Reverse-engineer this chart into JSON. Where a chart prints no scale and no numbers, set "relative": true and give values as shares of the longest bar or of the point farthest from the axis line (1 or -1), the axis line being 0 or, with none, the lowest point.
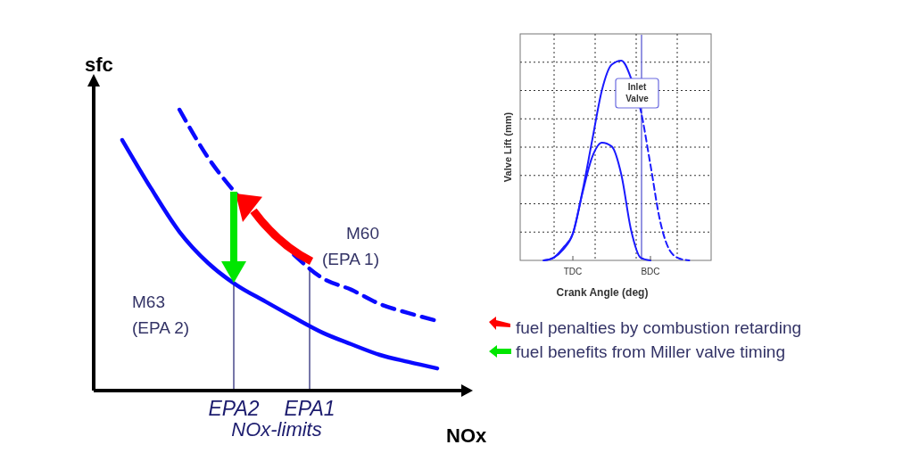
{
  "chart_data": [
    {
      "type": "line",
      "xlabel": "NOx",
      "ylabel": "sfc",
      "relative": true,
      "line_style": "solid",
      "categories": [
        null,
        null,
        null,
        null,
        null,
        null,
        null,
        null,
        null,
        null,
        null,
        null
      ],
      "series": [
        {
          "color": "#0a0aff",
          "values": [
            0.892,
            0.721,
            0.565,
            0.454,
            0.375,
            0.317,
            0.26,
            0.206,
            0.165,
            0.127,
            0.102,
            0.079
          ]
        },
        {
          "color": "#0a0aff",
          "line_style": "dashed",
          "values": [
            null,
            null,
            1,
            0.829,
            0.698,
            null,
            0.483,
            0.4,
            0.359,
            0.308,
            0.276,
            0.248
          ]
        }
      ],
      "annotations": [
        "EPA2",
        "EPA1",
        "NOx-limits",
        "M60\n(EPA 1)",
        "M63\n(EPA 2)",
        "fuel penalties by combustion retarding",
        "fuel benefits from Miller valve timing"
      ]
    },
    {
      "type": "line",
      "xlabel": "Crank Angle (deg)",
      "ylabel": "Valve Lift (mm)",
      "relative": true,
      "grid": true,
      "categories": [
        null,
        null,
        null,
        "TDC",
        null,
        null,
        null,
        null,
        null,
        null,
        null,
        "BDC",
        null,
        null,
        null,
        null
      ],
      "series": [
        {
          "color": "#1a1aff",
          "line_style": "solid",
          "values": [
            0,
            0.013,
            0.054,
            0.134,
            0.348,
            0.603,
            0.853,
            0.98,
            1,
            0.911,
            null,
            null,
            null,
            null,
            null,
            null
          ]
        },
        {
          "color": "#1a1aff",
          "line_style": "dashed",
          "values": [
            null,
            null,
            null,
            null,
            null,
            null,
            null,
            null,
            null,
            0.911,
            0.75,
            0.478,
            0.196,
            0.049,
            0.009,
            0
          ]
        },
        {
          "color": "#1a1aff",
          "line_style": "solid",
          "values": [
            0,
            0.013,
            0.063,
            0.134,
            0.339,
            0.518,
            0.589,
            0.571,
            0.429,
            0.152,
            0.013,
            0,
            null,
            null,
            null,
            null
          ]
        }
      ],
      "annotations": [
        "Inlet\nValve"
      ]
    }
  ]
}
